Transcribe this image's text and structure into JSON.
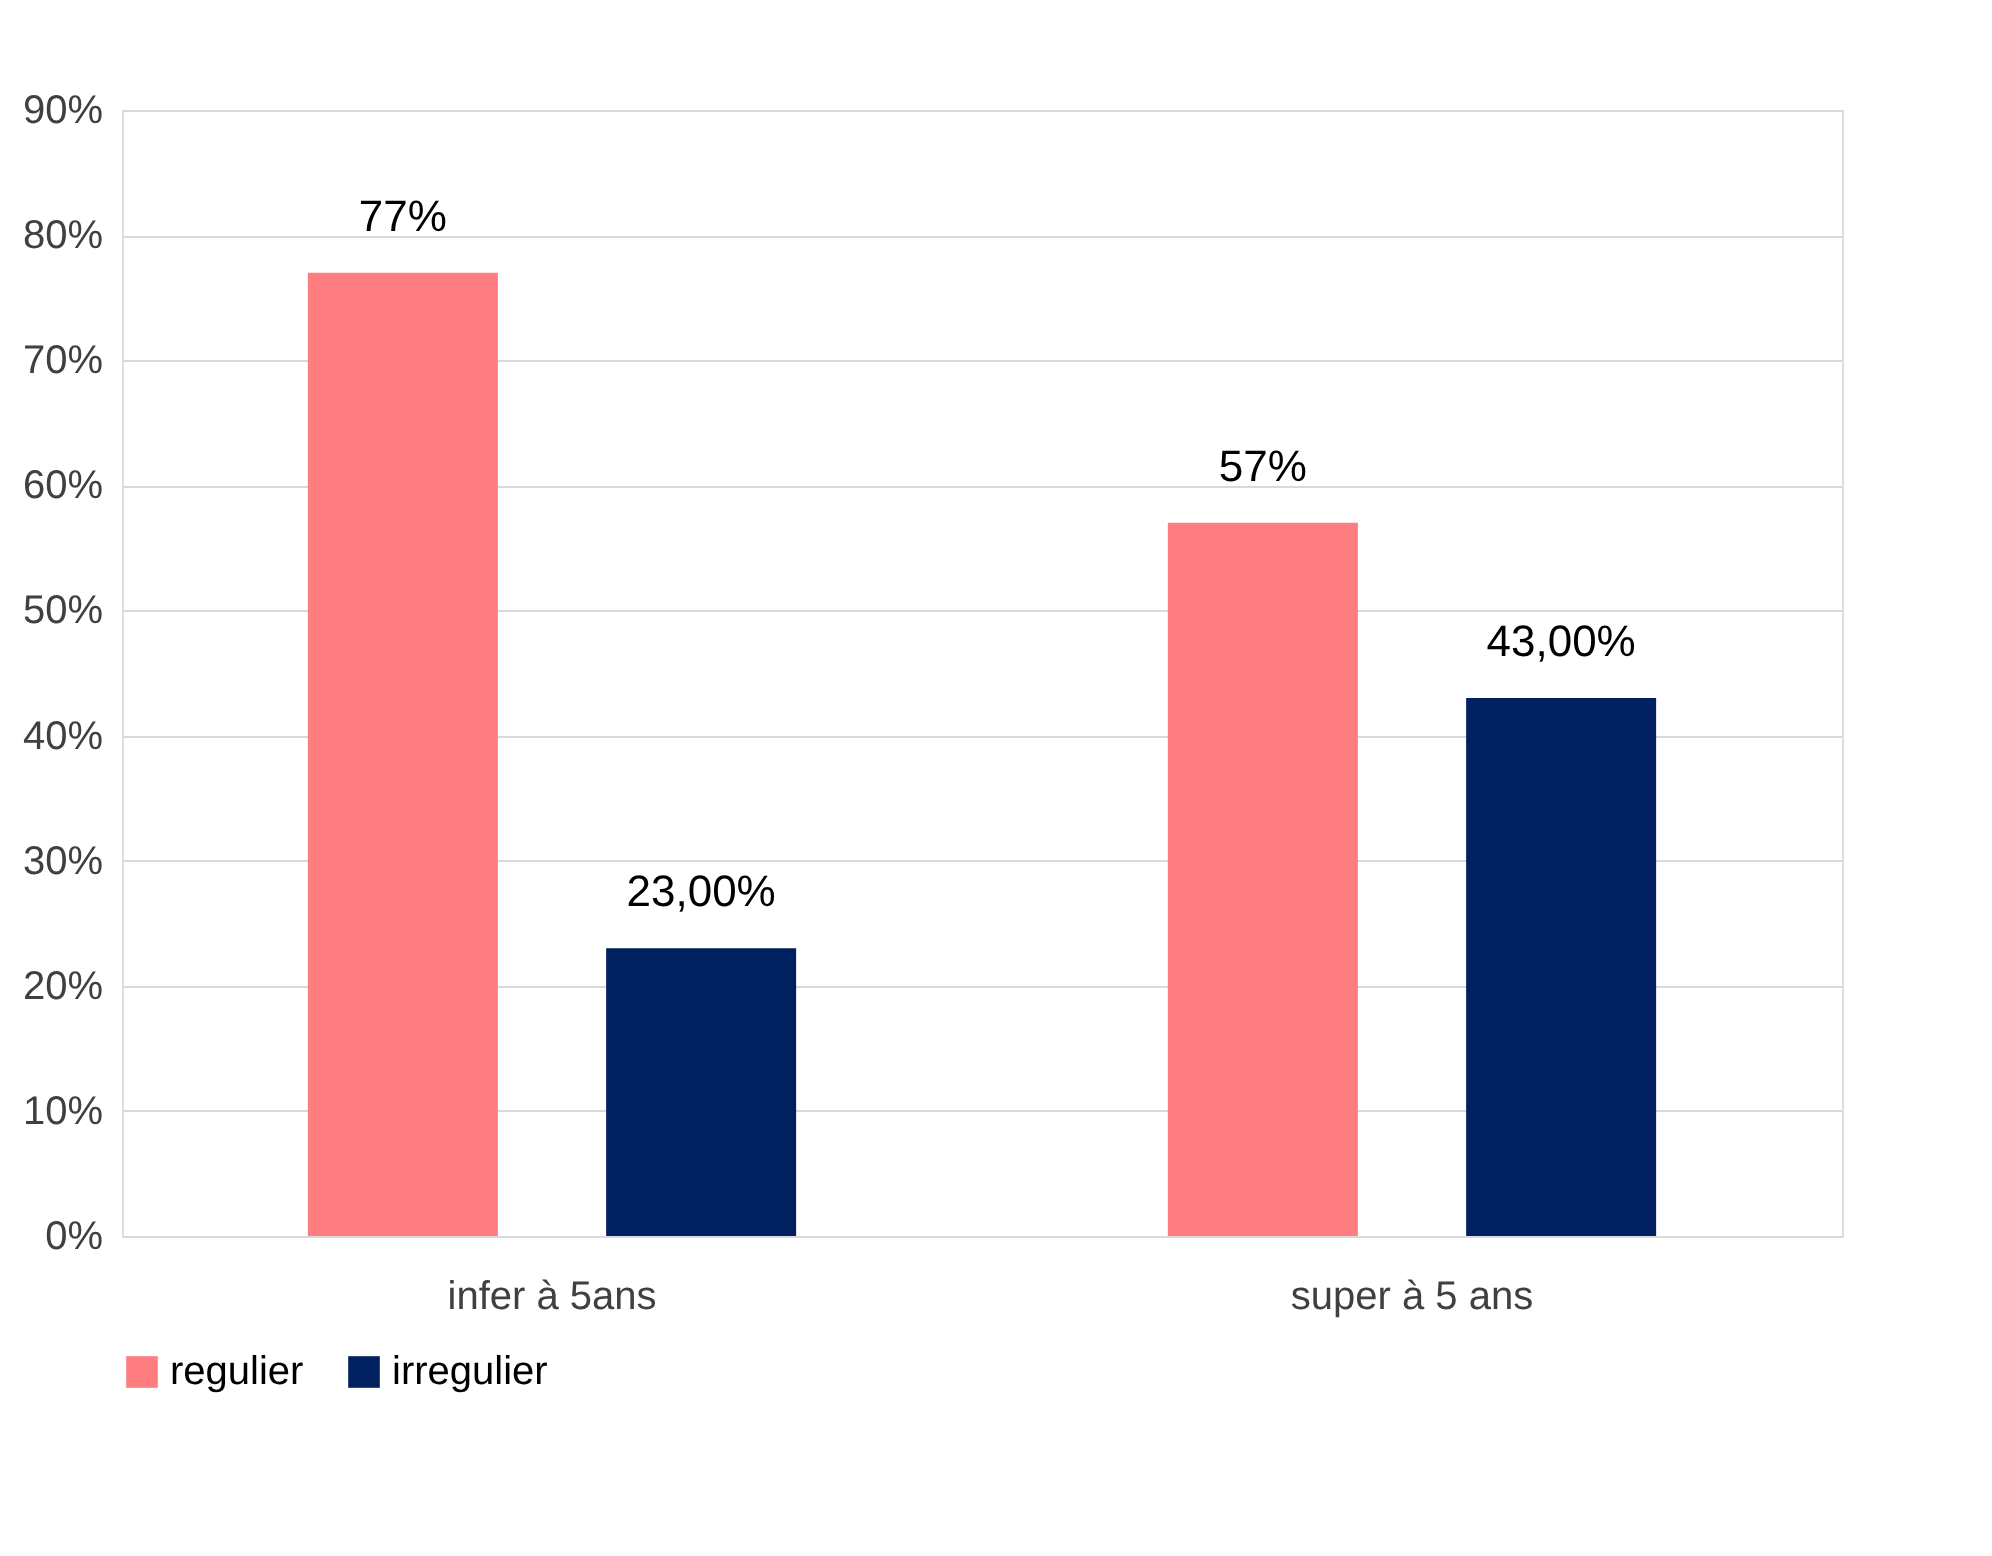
{
  "chart_data": {
    "type": "bar",
    "categories": [
      "infer à 5ans",
      "super à 5 ans"
    ],
    "series": [
      {
        "name": "regulier",
        "color": "#ff7c80",
        "values": [
          77,
          57
        ],
        "value_labels": [
          "77%",
          "57%"
        ]
      },
      {
        "name": "irregulier",
        "color": "#002060",
        "values": [
          23,
          43
        ],
        "value_labels": [
          "23,00%",
          "43,00%"
        ]
      }
    ],
    "ylim": [
      0,
      90
    ],
    "yticks": [
      {
        "value": 0,
        "label": "0%"
      },
      {
        "value": 10,
        "label": "10%"
      },
      {
        "value": 20,
        "label": "20%"
      },
      {
        "value": 30,
        "label": "30%"
      },
      {
        "value": 40,
        "label": "40%"
      },
      {
        "value": 50,
        "label": "50%"
      },
      {
        "value": 60,
        "label": "60%"
      },
      {
        "value": 70,
        "label": "70%"
      },
      {
        "value": 80,
        "label": "80%"
      },
      {
        "value": 90,
        "label": "90%"
      }
    ],
    "grid": "y",
    "legend": "bottom"
  }
}
